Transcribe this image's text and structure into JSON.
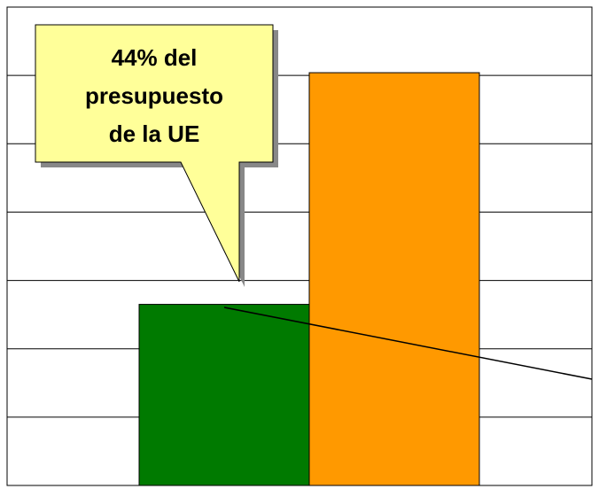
{
  "chart_data": {
    "type": "bar",
    "categories": [
      null,
      null
    ],
    "values": [
      2.65,
      6.04
    ],
    "colors": [
      "#007a00",
      "#ff9900"
    ],
    "ylim": [
      0,
      7
    ],
    "yticks": [
      0,
      1,
      2,
      3,
      4,
      5,
      6,
      7
    ],
    "grid": true,
    "annotation": [
      "44% del",
      "presupuesto",
      "de la UE"
    ]
  }
}
